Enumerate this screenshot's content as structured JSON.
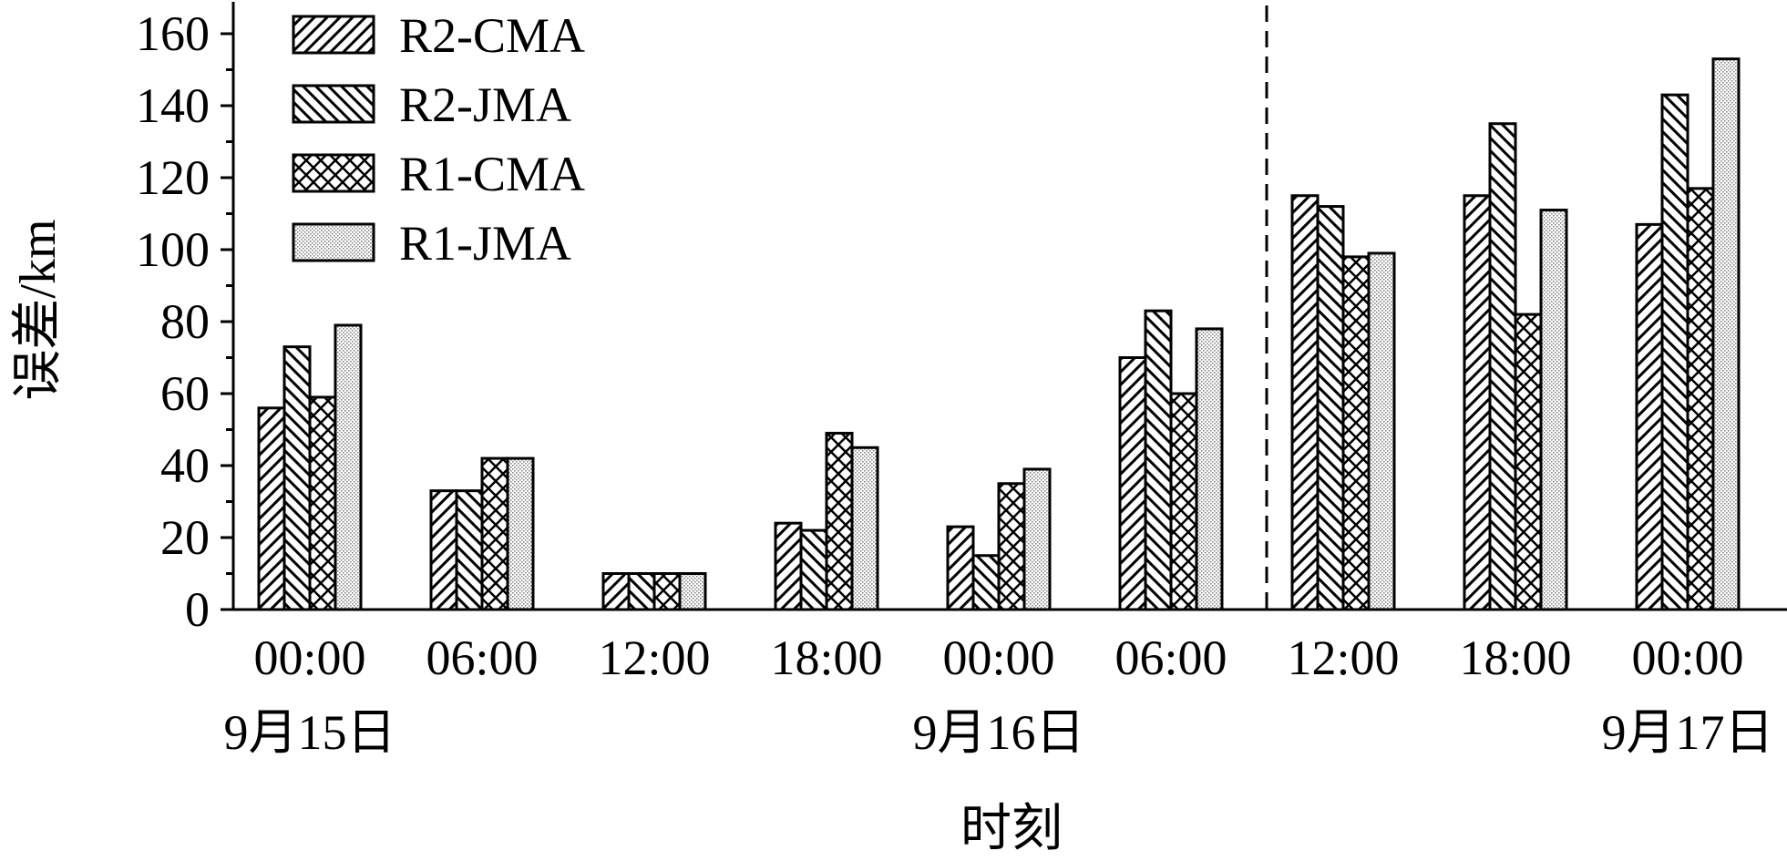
{
  "chart_data": {
    "type": "bar",
    "xlabel": "时刻",
    "ylabel": "误差/km",
    "ylim": [
      0,
      160
    ],
    "yticks": [
      0,
      20,
      40,
      60,
      80,
      100,
      120,
      140,
      160
    ],
    "categories": [
      "00:00",
      "06:00",
      "12:00",
      "18:00",
      "00:00",
      "06:00",
      "12:00",
      "18:00",
      "00:00"
    ],
    "date_labels": [
      {
        "text": "9月15日",
        "category_index": 0
      },
      {
        "text": "9月16日",
        "category_index": 4
      },
      {
        "text": "9月17日",
        "category_index": 8
      }
    ],
    "divider_after_category_index": 5,
    "legend_position": "top-left",
    "grid": false,
    "series": [
      {
        "name": "R2-CMA",
        "pattern": "hatch-forward",
        "values": [
          56,
          33,
          10,
          24,
          23,
          70,
          115,
          115,
          107
        ]
      },
      {
        "name": "R2-JMA",
        "pattern": "hatch-backward",
        "values": [
          73,
          33,
          10,
          22,
          15,
          83,
          112,
          135,
          143
        ]
      },
      {
        "name": "R1-CMA",
        "pattern": "crosshatch",
        "values": [
          59,
          42,
          10,
          49,
          35,
          60,
          98,
          82,
          117
        ]
      },
      {
        "name": "R1-JMA",
        "pattern": "dots",
        "values": [
          79,
          42,
          10,
          45,
          39,
          78,
          99,
          111,
          153
        ]
      }
    ]
  }
}
